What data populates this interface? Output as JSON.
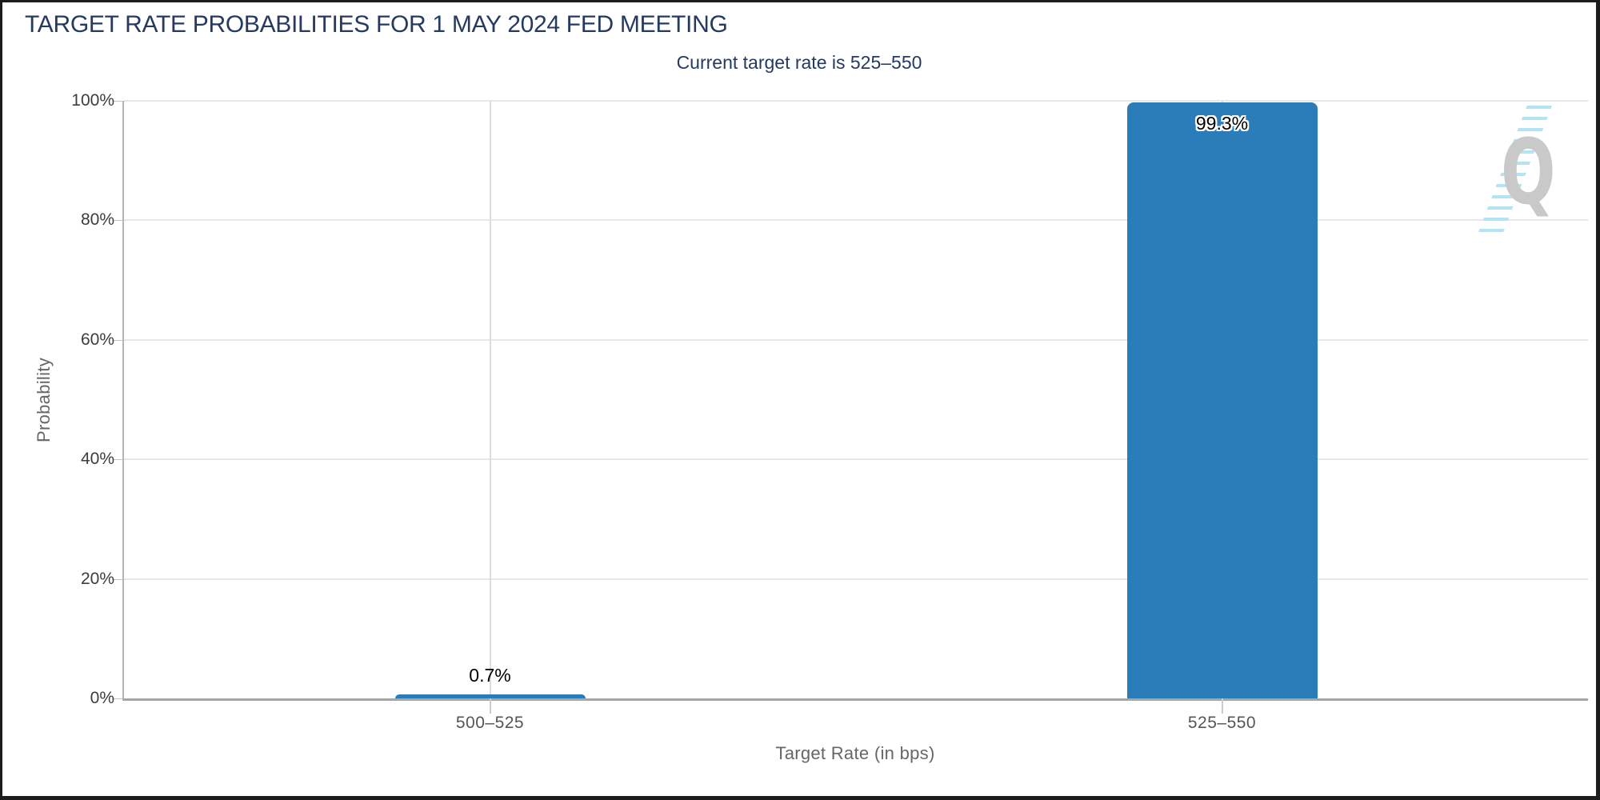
{
  "page": {
    "watermark_letter": "Q"
  },
  "chart_data": {
    "type": "bar",
    "title": "TARGET RATE PROBABILITIES FOR 1 MAY 2024 FED MEETING",
    "subtitle": "Current target rate is 525–550",
    "categories": [
      "500–525",
      "525–550"
    ],
    "values": [
      0.7,
      99.3
    ],
    "value_labels": [
      "0.7%",
      "99.3%"
    ],
    "xlabel": "Target Rate (in bps)",
    "ylabel": "Probability",
    "ylim": [
      0,
      100
    ],
    "yticks": [
      "0%",
      "20%",
      "40%",
      "60%",
      "80%",
      "100%"
    ],
    "grid": true,
    "legend_position": "none",
    "bar_color": "#2a7db9",
    "title_color": "#253a60",
    "axis_text_color": "#555555",
    "watermark_dash_color": "#b3e4f3",
    "watermark_q_color": "#c9c9c9"
  }
}
